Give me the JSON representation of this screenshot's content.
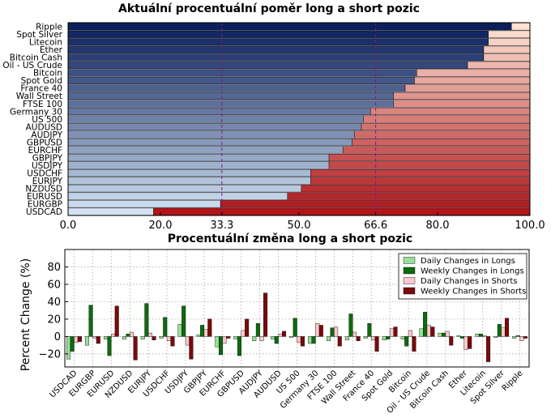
{
  "colors": {
    "long_dark": "#0a1f5c",
    "long_light": "#d2e2f2",
    "short_dark": "#b0151a",
    "short_light": "#fde2d4",
    "mark_line": "#7a1a8c",
    "mark_label": "#6a1a7a",
    "daily_long": "#98df98",
    "weekly_long": "#0d6b0d",
    "daily_short": "#f9c8cc",
    "weekly_short": "#7a0a0a"
  },
  "chart_data": [
    {
      "type": "bar",
      "orientation": "horizontal",
      "stacked": true,
      "title": "Aktuální procentuální poměr long a short pozic",
      "categories": [
        "Ripple",
        "Spot Silver",
        "Litecoin",
        "Ether",
        "Bitcoin Cash",
        "Oil - US Crude",
        "Bitcoin",
        "Spot Gold",
        "France 40",
        "Wall Street",
        "FTSE 100",
        "Germany 30",
        "US 500",
        "AUDUSD",
        "AUDJPY",
        "GBPUSD",
        "EURCHF",
        "GBPJPY",
        "USDJPY",
        "USDCHF",
        "EURJPY",
        "NZDUSD",
        "EURUSD",
        "EURGBP",
        "USDCAD"
      ],
      "series": [
        {
          "values": [
            96,
            91,
            91,
            90,
            90,
            86.5,
            75.5,
            75,
            73,
            70.5,
            70.5,
            65.5,
            64,
            63.5,
            62,
            61.5,
            59.5,
            56.5,
            56.5,
            52.5,
            52.5,
            50.5,
            47.5,
            33,
            18.5
          ]
        },
        {
          "values": [
            4,
            9,
            9,
            10,
            10,
            13.5,
            24.5,
            25,
            27,
            29.5,
            29.5,
            34.5,
            36,
            36.5,
            38,
            38.5,
            40.5,
            43.5,
            43.5,
            47.5,
            47.5,
            49.5,
            52.5,
            67,
            81.5
          ]
        }
      ],
      "xlim": [
        0,
        100
      ],
      "xticks": [
        "0.0",
        "20.0",
        "33.3",
        "50.0",
        "66.6",
        "80.0",
        "100.0"
      ],
      "xtick_values": [
        0,
        20,
        33.3,
        50,
        66.6,
        80,
        100
      ],
      "reference_lines": [
        33.3,
        66.6
      ]
    },
    {
      "type": "bar",
      "title": "Procentuální změna long a short pozic",
      "ylabel": "Percent Change (%)",
      "ylim": [
        -35,
        100
      ],
      "yticks": [
        "−20",
        "0",
        "20",
        "40",
        "60",
        "80"
      ],
      "ytick_values": [
        -20,
        0,
        20,
        40,
        60,
        80
      ],
      "grid": true,
      "legend": "top-right",
      "categories": [
        "USDCAD",
        "EURGBP",
        "EURUSD",
        "NZDUSD",
        "EURJPY",
        "USDCHF",
        "USDJPY",
        "GBPJPY",
        "EURCHF",
        "GBPUSD",
        "AUDJPY",
        "AUDUSD",
        "US 500",
        "Germany 30",
        "FTSE 100",
        "Wall Street",
        "France 40",
        "Spot Gold",
        "Bitcoin",
        "Oil - US Crude",
        "Bitcoin Cash",
        "Ether",
        "Litecoin",
        "Spot Silver",
        "Ripple"
      ],
      "series": [
        {
          "name": "Daily Changes in Longs",
          "values": [
            -26,
            -10,
            -3,
            -3,
            -3,
            -2,
            14,
            2,
            -12,
            -3,
            -5,
            -3,
            -1,
            -8,
            -5,
            -4,
            -2,
            -4,
            -3,
            9,
            4,
            1,
            3,
            -1,
            -2
          ]
        },
        {
          "name": "Weekly Changes in Longs",
          "values": [
            -17,
            36,
            -22,
            3,
            38,
            22,
            35,
            13,
            -21,
            -22,
            15,
            -8,
            21,
            -8,
            10,
            26,
            15,
            -3,
            -11,
            28,
            4,
            -2,
            3,
            14,
            1
          ]
        },
        {
          "name": "Daily Changes in Shorts",
          "values": [
            -7,
            -2,
            3,
            5,
            4,
            -5,
            -10,
            8,
            -8,
            7,
            -5,
            3,
            -7,
            15,
            11,
            5,
            -4,
            9,
            7,
            13,
            6,
            -15,
            1,
            10,
            -5
          ]
        },
        {
          "name": "Weekly Changes in Shorts",
          "values": [
            -6,
            -8,
            35,
            -27,
            -4,
            -11,
            -26,
            20,
            -2,
            20,
            50,
            6,
            -11,
            13,
            -11,
            -5,
            -17,
            11,
            -17,
            11,
            -10,
            -14,
            -29,
            21,
            -2
          ]
        }
      ]
    }
  ]
}
